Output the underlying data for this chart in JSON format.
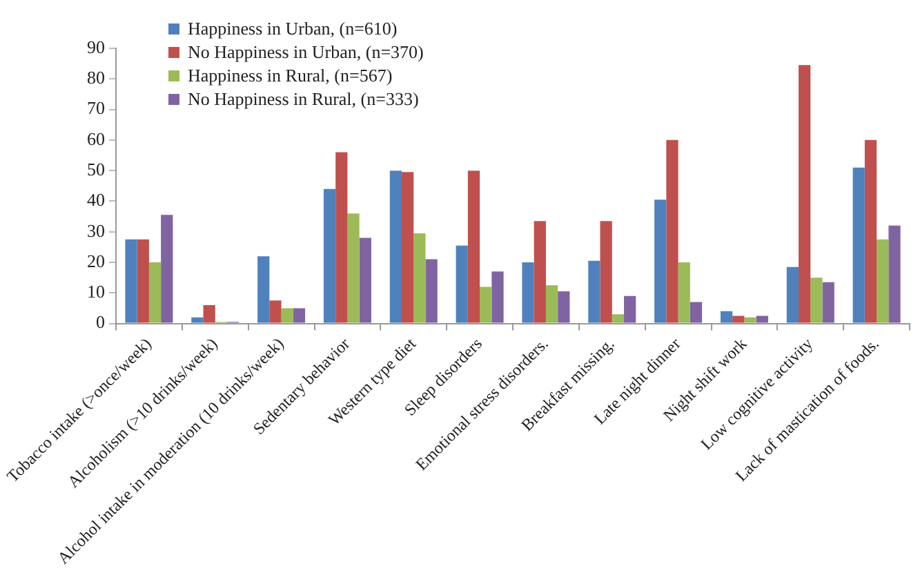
{
  "chart_data": {
    "type": "bar",
    "categories": [
      "Tobacco intake (>once/week)",
      "Alcoholism (>10 drinks/week)",
      "Alcohol intake in moderation (10 drinks/week)",
      "Sedentary behavior",
      "Western type diet",
      "Sleep disorders",
      "Emotional stress disorders.",
      "Breakfast missing.",
      "Late night dinner",
      "Night shift work",
      "Low cognitive activity",
      "Lack of mastication of foods."
    ],
    "series": [
      {
        "name": "Happiness in Urban, (n=610)",
        "color": "#4f81bd",
        "values": [
          27.5,
          2,
          22,
          44,
          50,
          25.5,
          20,
          20.5,
          40.5,
          4,
          18.5,
          51
        ]
      },
      {
        "name": "No Happiness in Urban, (n=370)",
        "color": "#c0504d",
        "values": [
          27.5,
          6,
          7.5,
          56,
          49.5,
          50,
          33.5,
          33.5,
          60,
          2.5,
          84.5,
          60
        ]
      },
      {
        "name": "Happiness in Rural, (n=567)",
        "color": "#9bbb59",
        "values": [
          20,
          0.5,
          5,
          36,
          29.5,
          12,
          12.5,
          3,
          20,
          2,
          15,
          27.5
        ]
      },
      {
        "name": "No Happiness in Rural, (n=333)",
        "color": "#8064a2",
        "values": [
          35.5,
          0.5,
          5,
          28,
          21,
          17,
          10.5,
          9,
          7,
          2.5,
          13.5,
          32
        ]
      }
    ],
    "ylim": [
      0,
      90
    ],
    "yticks": [
      0,
      10,
      20,
      30,
      40,
      50,
      60,
      70,
      80,
      90
    ],
    "grid": false,
    "legend": "top left"
  }
}
